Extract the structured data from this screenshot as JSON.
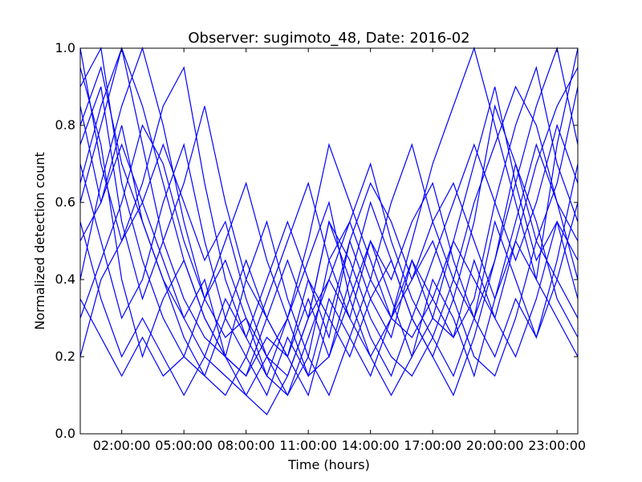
{
  "chart_data": {
    "type": "line",
    "title": "Observer: sugimoto_48, Date: 2016-02",
    "xlabel": "Time (hours)",
    "ylabel": "Normalized detection count",
    "xlim": [
      0.0,
      24.0
    ],
    "ylim": [
      0.0,
      1.0
    ],
    "x_ticks": [
      {
        "value": 2,
        "label": "02:00:00"
      },
      {
        "value": 5,
        "label": "05:00:00"
      },
      {
        "value": 8,
        "label": "08:00:00"
      },
      {
        "value": 11,
        "label": "11:00:00"
      },
      {
        "value": 14,
        "label": "14:00:00"
      },
      {
        "value": 17,
        "label": "17:00:00"
      },
      {
        "value": 20,
        "label": "20:00:00"
      },
      {
        "value": 23,
        "label": "23:00:00"
      }
    ],
    "y_ticks": [
      {
        "value": 0.0,
        "label": "0.0"
      },
      {
        "value": 0.2,
        "label": "0.2"
      },
      {
        "value": 0.4,
        "label": "0.4"
      },
      {
        "value": 0.6,
        "label": "0.6"
      },
      {
        "value": 0.8,
        "label": "0.8"
      },
      {
        "value": 1.0,
        "label": "1.0"
      }
    ],
    "grid": false,
    "legend": "none",
    "line_color": "#0000ff",
    "x": [
      0,
      1,
      2,
      3,
      4,
      5,
      6,
      7,
      8,
      9,
      10,
      11,
      12,
      13,
      14,
      15,
      16,
      17,
      18,
      19,
      20,
      21,
      22,
      23,
      24
    ],
    "series": [
      {
        "values": [
          0.8,
          0.95,
          0.7,
          0.55,
          0.4,
          0.3,
          0.2,
          0.15,
          0.1,
          0.2,
          0.3,
          0.5,
          0.75,
          0.6,
          0.45,
          0.3,
          0.25,
          0.35,
          0.5,
          0.4,
          0.3,
          0.5,
          0.7,
          0.85,
          0.95
        ]
      },
      {
        "values": [
          0.6,
          0.8,
          1.0,
          0.75,
          0.5,
          0.35,
          0.25,
          0.2,
          0.1,
          0.05,
          0.15,
          0.3,
          0.55,
          0.45,
          0.3,
          0.2,
          0.15,
          0.25,
          0.4,
          0.6,
          0.75,
          0.9,
          0.8,
          0.6,
          0.4
        ]
      },
      {
        "values": [
          1.0,
          0.7,
          0.5,
          0.6,
          0.45,
          0.3,
          0.4,
          0.2,
          0.15,
          0.25,
          0.2,
          0.4,
          0.3,
          0.5,
          0.35,
          0.45,
          0.3,
          0.2,
          0.35,
          0.55,
          0.85,
          0.7,
          0.5,
          0.65,
          0.9
        ]
      },
      {
        "values": [
          0.4,
          0.65,
          0.85,
          1.0,
          0.8,
          0.55,
          0.35,
          0.25,
          0.3,
          0.2,
          0.1,
          0.2,
          0.45,
          0.55,
          0.4,
          0.3,
          0.4,
          0.55,
          0.65,
          0.5,
          0.35,
          0.55,
          0.75,
          0.6,
          0.5
        ]
      },
      {
        "values": [
          0.7,
          0.5,
          0.3,
          0.4,
          0.6,
          0.75,
          0.5,
          0.3,
          0.2,
          0.1,
          0.25,
          0.15,
          0.35,
          0.25,
          0.15,
          0.3,
          0.5,
          0.7,
          0.85,
          1.0,
          0.8,
          0.6,
          0.4,
          0.3,
          0.2
        ]
      },
      {
        "values": [
          0.9,
          1.0,
          0.65,
          0.45,
          0.3,
          0.2,
          0.15,
          0.3,
          0.45,
          0.3,
          0.2,
          0.35,
          0.2,
          0.4,
          0.6,
          0.45,
          0.3,
          0.2,
          0.1,
          0.25,
          0.45,
          0.65,
          0.85,
          1.0,
          0.75
        ]
      },
      {
        "values": [
          0.3,
          0.45,
          0.6,
          0.8,
          0.7,
          0.5,
          0.35,
          0.45,
          0.3,
          0.15,
          0.3,
          0.45,
          0.6,
          0.35,
          0.2,
          0.1,
          0.2,
          0.3,
          0.25,
          0.35,
          0.6,
          0.8,
          0.95,
          0.7,
          0.55
        ]
      },
      {
        "values": [
          0.55,
          0.35,
          0.2,
          0.3,
          0.2,
          0.1,
          0.2,
          0.35,
          0.25,
          0.4,
          0.55,
          0.4,
          0.25,
          0.5,
          0.65,
          0.55,
          0.4,
          0.5,
          0.35,
          0.2,
          0.15,
          0.3,
          0.5,
          0.4,
          0.6
        ]
      },
      {
        "values": [
          0.75,
          0.9,
          0.55,
          0.35,
          0.5,
          0.65,
          0.85,
          0.6,
          0.4,
          0.3,
          0.2,
          0.1,
          0.3,
          0.2,
          0.35,
          0.25,
          0.45,
          0.3,
          0.5,
          0.7,
          0.9,
          0.65,
          0.45,
          0.55,
          0.35
        ]
      },
      {
        "values": [
          0.5,
          0.6,
          0.8,
          0.55,
          0.4,
          0.25,
          0.15,
          0.1,
          0.2,
          0.35,
          0.5,
          0.65,
          0.45,
          0.3,
          0.5,
          0.35,
          0.2,
          0.4,
          0.3,
          0.15,
          0.35,
          0.5,
          0.4,
          0.75,
          1.0
        ]
      },
      {
        "values": [
          0.95,
          0.75,
          0.4,
          0.2,
          0.35,
          0.45,
          0.3,
          0.2,
          0.4,
          0.55,
          0.35,
          0.2,
          0.1,
          0.25,
          0.4,
          0.6,
          0.75,
          0.55,
          0.4,
          0.3,
          0.55,
          0.4,
          0.25,
          0.45,
          0.7
        ]
      },
      {
        "values": [
          0.2,
          0.4,
          0.5,
          0.65,
          0.85,
          0.95,
          0.65,
          0.4,
          0.25,
          0.15,
          0.1,
          0.25,
          0.4,
          0.55,
          0.7,
          0.5,
          0.35,
          0.25,
          0.15,
          0.3,
          0.45,
          0.7,
          0.55,
          0.35,
          0.25
        ]
      },
      {
        "values": [
          0.65,
          0.85,
          1.0,
          0.85,
          0.65,
          0.45,
          0.3,
          0.2,
          0.15,
          0.3,
          0.45,
          0.3,
          0.55,
          0.4,
          0.25,
          0.15,
          0.3,
          0.45,
          0.6,
          0.75,
          0.6,
          0.45,
          0.6,
          0.8,
          0.65
        ]
      },
      {
        "values": [
          0.35,
          0.25,
          0.15,
          0.25,
          0.15,
          0.2,
          0.35,
          0.5,
          0.65,
          0.45,
          0.3,
          0.15,
          0.2,
          0.35,
          0.5,
          0.4,
          0.55,
          0.65,
          0.45,
          0.3,
          0.2,
          0.35,
          0.25,
          0.4,
          0.3
        ]
      },
      {
        "values": [
          0.85,
          0.6,
          0.75,
          0.6,
          0.75,
          0.6,
          0.45,
          0.55,
          0.35,
          0.2,
          0.15,
          0.3,
          0.4,
          0.3,
          0.2,
          0.3,
          0.45,
          0.35,
          0.25,
          0.45,
          0.3,
          0.2,
          0.35,
          0.55,
          0.45
        ]
      }
    ]
  }
}
